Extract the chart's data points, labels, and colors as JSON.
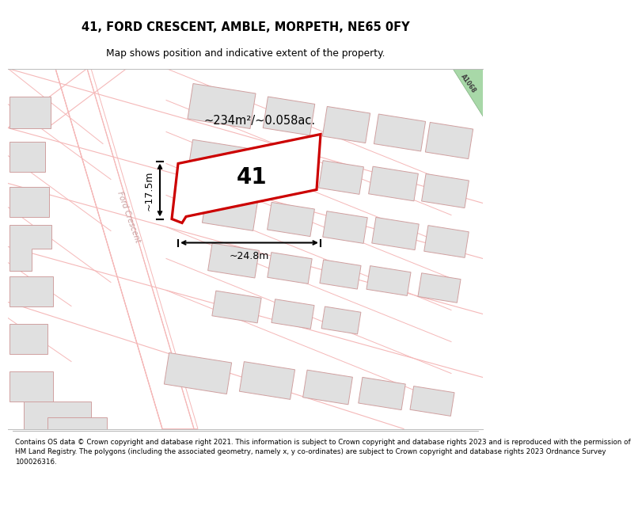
{
  "title": "41, FORD CRESCENT, AMBLE, MORPETH, NE65 0FY",
  "subtitle": "Map shows position and indicative extent of the property.",
  "footer_line1": "Contains OS data © Crown copyright and database right 2021. This information is subject to Crown copyright and database rights 2023 and is reproduced with the permission of",
  "footer_line2": "HM Land Registry. The polygons (including the associated geometry, namely x, y co-ordinates) are subject to Crown copyright and database rights 2023 Ordnance Survey",
  "footer_line3": "100026316.",
  "area_label": "~234m²/~0.058ac.",
  "width_label": "~24.8m",
  "height_label": "~17.5m",
  "plot_number": "41",
  "map_bg": "#ffffff",
  "road_outline_color": "#f5b8b8",
  "building_fill": "#e0e0e0",
  "building_edge": "#d0a0a0",
  "plot_outline_color": "#cc0000",
  "green_fill": "#a8d8a8",
  "green_edge": "#80b080",
  "road_label_color": "#c8a0a0",
  "a1068_label_color": "#404040"
}
